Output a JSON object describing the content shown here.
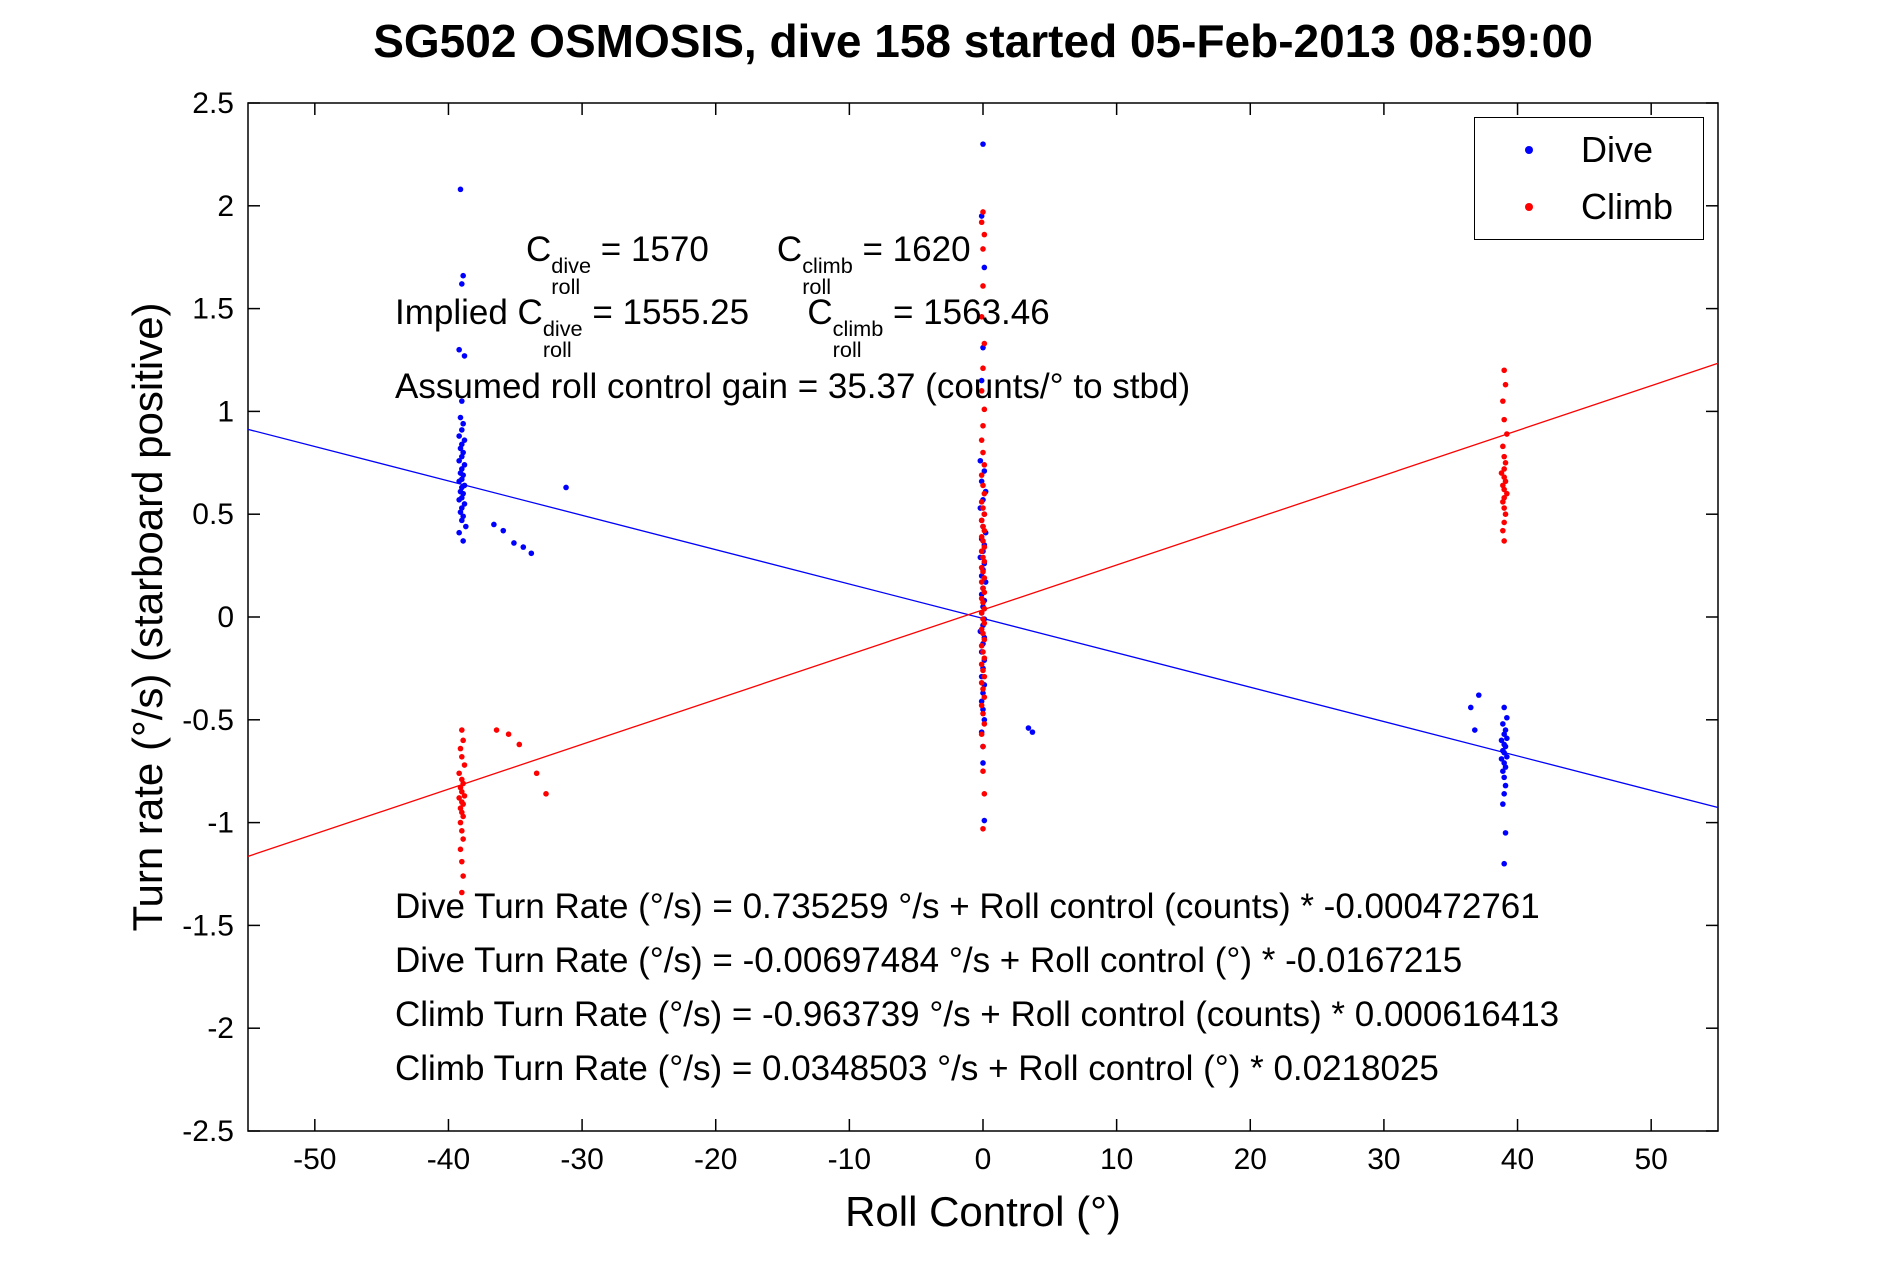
{
  "title": "SG502 OSMOSIS, dive 158 started 05-Feb-2013 08:59:00",
  "chart_data": {
    "type": "scatter",
    "title": "SG502 OSMOSIS, dive 158 started 05-Feb-2013 08:59:00",
    "xlabel": "Roll Control (°)",
    "ylabel": "Turn rate (°/s) (starboard positive)",
    "xlim": [
      -55,
      55
    ],
    "ylim": [
      -2.5,
      2.5
    ],
    "xticks": [
      -50,
      -40,
      -30,
      -20,
      -10,
      0,
      10,
      20,
      30,
      40,
      50
    ],
    "xtick_labels": [
      "-50",
      "-40",
      "-30",
      "-20",
      "-10",
      "0",
      "10",
      "20",
      "30",
      "40",
      "50"
    ],
    "yticks": [
      -2.5,
      -2,
      -1.5,
      -1,
      -0.5,
      0,
      0.5,
      1,
      1.5,
      2,
      2.5
    ],
    "ytick_labels": [
      "-2.5",
      "-2",
      "-1.5",
      "-1",
      "-0.5",
      "0",
      "0.5",
      "1",
      "1.5",
      "2",
      "2.5"
    ],
    "grid": false,
    "legend_position": "top-right",
    "series": [
      {
        "name": "Dive",
        "color": "#0000ff",
        "marker": "point",
        "fit": {
          "intercept": -0.00697484,
          "slope": -0.0167215
        },
        "points": [
          [
            -39.1,
            2.08
          ],
          [
            -38.9,
            1.66
          ],
          [
            -39.0,
            1.62
          ],
          [
            -39.2,
            1.3
          ],
          [
            -38.8,
            1.27
          ],
          [
            -39.0,
            1.05
          ],
          [
            -39.1,
            0.97
          ],
          [
            -38.9,
            0.94
          ],
          [
            -39.0,
            0.91
          ],
          [
            -39.2,
            0.88
          ],
          [
            -38.8,
            0.86
          ],
          [
            -39.0,
            0.84
          ],
          [
            -39.1,
            0.82
          ],
          [
            -38.9,
            0.8
          ],
          [
            -39.0,
            0.78
          ],
          [
            -39.2,
            0.76
          ],
          [
            -38.8,
            0.74
          ],
          [
            -39.0,
            0.72
          ],
          [
            -39.1,
            0.7
          ],
          [
            -38.9,
            0.69
          ],
          [
            -39.0,
            0.67
          ],
          [
            -39.2,
            0.66
          ],
          [
            -38.8,
            0.64
          ],
          [
            -39.0,
            0.63
          ],
          [
            -39.1,
            0.61
          ],
          [
            -38.9,
            0.6
          ],
          [
            -39.0,
            0.58
          ],
          [
            -39.2,
            0.57
          ],
          [
            -38.8,
            0.55
          ],
          [
            -39.0,
            0.53
          ],
          [
            -39.1,
            0.51
          ],
          [
            -38.9,
            0.49
          ],
          [
            -39.0,
            0.47
          ],
          [
            -38.7,
            0.44
          ],
          [
            -39.2,
            0.41
          ],
          [
            -38.9,
            0.37
          ],
          [
            -36.6,
            0.45
          ],
          [
            -35.9,
            0.42
          ],
          [
            -35.1,
            0.36
          ],
          [
            -34.4,
            0.34
          ],
          [
            -33.8,
            0.31
          ],
          [
            -31.2,
            0.63
          ],
          [
            0.0,
            2.3
          ],
          [
            -0.1,
            1.95
          ],
          [
            0.1,
            1.7
          ],
          [
            0.0,
            1.31
          ],
          [
            -0.1,
            1.15
          ],
          [
            -0.2,
            0.76
          ],
          [
            0.1,
            0.71
          ],
          [
            -0.1,
            0.66
          ],
          [
            0.2,
            0.61
          ],
          [
            0.0,
            0.57
          ],
          [
            -0.2,
            0.53
          ],
          [
            0.1,
            0.5
          ],
          [
            -0.1,
            0.47
          ],
          [
            0.0,
            0.44
          ],
          [
            0.2,
            0.41
          ],
          [
            -0.1,
            0.38
          ],
          [
            0.1,
            0.35
          ],
          [
            0.0,
            0.32
          ],
          [
            -0.2,
            0.29
          ],
          [
            0.1,
            0.26
          ],
          [
            0.0,
            0.23
          ],
          [
            -0.1,
            0.2
          ],
          [
            0.2,
            0.17
          ],
          [
            0.0,
            0.14
          ],
          [
            -0.1,
            0.11
          ],
          [
            0.1,
            0.08
          ],
          [
            0.0,
            0.05
          ],
          [
            -0.1,
            0.02
          ],
          [
            0.1,
            -0.01
          ],
          [
            0.0,
            -0.04
          ],
          [
            -0.2,
            -0.07
          ],
          [
            0.1,
            -0.1
          ],
          [
            0.0,
            -0.13
          ],
          [
            -0.1,
            -0.17
          ],
          [
            0.1,
            -0.21
          ],
          [
            0.0,
            -0.25
          ],
          [
            -0.1,
            -0.29
          ],
          [
            0.1,
            -0.33
          ],
          [
            0.0,
            -0.37
          ],
          [
            -0.1,
            -0.41
          ],
          [
            0.0,
            -0.45
          ],
          [
            0.1,
            -0.5
          ],
          [
            -0.1,
            -0.56
          ],
          [
            0.0,
            -0.63
          ],
          [
            0.0,
            -0.71
          ],
          [
            0.1,
            -0.99
          ],
          [
            3.4,
            -0.54
          ],
          [
            3.7,
            -0.56
          ],
          [
            39.0,
            -0.44
          ],
          [
            39.2,
            -0.49
          ],
          [
            38.9,
            -0.52
          ],
          [
            39.1,
            -0.55
          ],
          [
            39.0,
            -0.57
          ],
          [
            39.2,
            -0.59
          ],
          [
            38.8,
            -0.6
          ],
          [
            39.0,
            -0.62
          ],
          [
            39.1,
            -0.63
          ],
          [
            38.9,
            -0.65
          ],
          [
            39.0,
            -0.66
          ],
          [
            39.2,
            -0.68
          ],
          [
            38.8,
            -0.69
          ],
          [
            39.0,
            -0.71
          ],
          [
            39.1,
            -0.73
          ],
          [
            38.9,
            -0.75
          ],
          [
            39.0,
            -0.78
          ],
          [
            39.1,
            -0.82
          ],
          [
            39.0,
            -0.86
          ],
          [
            38.9,
            -0.91
          ],
          [
            39.1,
            -1.05
          ],
          [
            39.0,
            -1.2
          ],
          [
            36.5,
            -0.44
          ],
          [
            36.8,
            -0.55
          ],
          [
            37.1,
            -0.38
          ]
        ]
      },
      {
        "name": "Climb",
        "color": "#ff0000",
        "marker": "point",
        "fit": {
          "intercept": 0.0348503,
          "slope": 0.0218025
        },
        "points": [
          [
            -39.0,
            -0.55
          ],
          [
            -38.9,
            -0.6
          ],
          [
            -39.1,
            -0.64
          ],
          [
            -39.0,
            -0.68
          ],
          [
            -38.8,
            -0.72
          ],
          [
            -39.2,
            -0.76
          ],
          [
            -39.0,
            -0.79
          ],
          [
            -38.9,
            -0.81
          ],
          [
            -39.1,
            -0.83
          ],
          [
            -39.0,
            -0.85
          ],
          [
            -38.8,
            -0.87
          ],
          [
            -39.2,
            -0.88
          ],
          [
            -39.0,
            -0.9
          ],
          [
            -38.9,
            -0.91
          ],
          [
            -39.1,
            -0.93
          ],
          [
            -39.0,
            -0.95
          ],
          [
            -38.9,
            -0.97
          ],
          [
            -39.1,
            -1.0
          ],
          [
            -39.0,
            -1.04
          ],
          [
            -38.9,
            -1.08
          ],
          [
            -39.1,
            -1.13
          ],
          [
            -39.0,
            -1.19
          ],
          [
            -38.9,
            -1.26
          ],
          [
            -39.0,
            -1.34
          ],
          [
            -36.4,
            -0.55
          ],
          [
            -35.5,
            -0.57
          ],
          [
            -34.7,
            -0.62
          ],
          [
            -33.4,
            -0.76
          ],
          [
            -32.7,
            -0.86
          ],
          [
            0.0,
            1.97
          ],
          [
            -0.1,
            1.92
          ],
          [
            0.1,
            1.86
          ],
          [
            0.0,
            1.79
          ],
          [
            0.0,
            1.61
          ],
          [
            -0.1,
            1.46
          ],
          [
            0.1,
            1.33
          ],
          [
            0.0,
            1.21
          ],
          [
            -0.1,
            1.1
          ],
          [
            0.1,
            1.01
          ],
          [
            0.0,
            0.93
          ],
          [
            -0.1,
            0.86
          ],
          [
            0.0,
            0.8
          ],
          [
            0.1,
            0.74
          ],
          [
            -0.1,
            0.69
          ],
          [
            0.0,
            0.64
          ],
          [
            0.1,
            0.6
          ],
          [
            -0.1,
            0.56
          ],
          [
            0.0,
            0.53
          ],
          [
            0.1,
            0.5
          ],
          [
            -0.1,
            0.47
          ],
          [
            0.0,
            0.44
          ],
          [
            0.1,
            0.42
          ],
          [
            -0.1,
            0.39
          ],
          [
            0.0,
            0.37
          ],
          [
            0.1,
            0.34
          ],
          [
            -0.1,
            0.32
          ],
          [
            0.0,
            0.29
          ],
          [
            0.1,
            0.27
          ],
          [
            -0.1,
            0.24
          ],
          [
            0.0,
            0.22
          ],
          [
            0.1,
            0.19
          ],
          [
            -0.1,
            0.17
          ],
          [
            0.0,
            0.14
          ],
          [
            0.1,
            0.12
          ],
          [
            -0.1,
            0.09
          ],
          [
            0.0,
            0.07
          ],
          [
            0.1,
            0.04
          ],
          [
            -0.1,
            0.02
          ],
          [
            0.0,
            -0.01
          ],
          [
            0.1,
            -0.03
          ],
          [
            -0.1,
            -0.06
          ],
          [
            0.0,
            -0.08
          ],
          [
            0.1,
            -0.11
          ],
          [
            -0.1,
            -0.14
          ],
          [
            0.0,
            -0.17
          ],
          [
            0.1,
            -0.2
          ],
          [
            -0.1,
            -0.23
          ],
          [
            0.0,
            -0.26
          ],
          [
            0.1,
            -0.29
          ],
          [
            -0.1,
            -0.32
          ],
          [
            0.0,
            -0.35
          ],
          [
            0.1,
            -0.39
          ],
          [
            -0.1,
            -0.43
          ],
          [
            0.0,
            -0.47
          ],
          [
            0.1,
            -0.52
          ],
          [
            -0.1,
            -0.57
          ],
          [
            0.0,
            -0.63
          ],
          [
            0.0,
            -0.75
          ],
          [
            0.1,
            -0.86
          ],
          [
            0.0,
            -1.03
          ],
          [
            39.0,
            1.2
          ],
          [
            39.1,
            1.13
          ],
          [
            38.9,
            1.05
          ],
          [
            39.0,
            0.96
          ],
          [
            39.2,
            0.89
          ],
          [
            38.9,
            0.83
          ],
          [
            39.0,
            0.78
          ],
          [
            39.1,
            0.75
          ],
          [
            39.0,
            0.72
          ],
          [
            38.8,
            0.7
          ],
          [
            39.0,
            0.68
          ],
          [
            39.1,
            0.66
          ],
          [
            38.9,
            0.64
          ],
          [
            39.0,
            0.62
          ],
          [
            39.2,
            0.6
          ],
          [
            39.0,
            0.58
          ],
          [
            38.9,
            0.56
          ],
          [
            39.0,
            0.53
          ],
          [
            39.1,
            0.5
          ],
          [
            39.0,
            0.46
          ],
          [
            38.9,
            0.42
          ],
          [
            39.0,
            0.37
          ]
        ]
      }
    ]
  },
  "legend": {
    "dive_label": "Dive",
    "climb_label": "Climb",
    "dive_color": "#0000ff",
    "climb_color": "#ff0000"
  },
  "annotations": {
    "coeffs": {
      "segments": [
        {
          "text": "C"
        },
        {
          "sup": "dive",
          "sub": "roll"
        },
        {
          "text": " = 1570"
        },
        {
          "text": "       "
        },
        {
          "text": "C"
        },
        {
          "sup": "climb",
          "sub": "roll"
        },
        {
          "text": " = 1620"
        }
      ]
    },
    "implied": {
      "segments": [
        {
          "text": "Implied C"
        },
        {
          "sup": "dive",
          "sub": "roll"
        },
        {
          "text": " = 1555.25"
        },
        {
          "text": "      "
        },
        {
          "text": "C"
        },
        {
          "sup": "climb",
          "sub": "roll"
        },
        {
          "text": " = 1563.46"
        }
      ]
    },
    "gain": "Assumed roll control gain = 35.37 (counts/° to stbd)"
  },
  "equations": [
    "Dive Turn Rate (°/s) = 0.735259 °/s + Roll control (counts) * -0.000472761",
    "Dive Turn Rate (°/s) = -0.00697484 °/s + Roll control (°) * -0.0167215",
    "Climb Turn Rate (°/s) = -0.963739 °/s + Roll control (counts) * 0.000616413",
    "Climb Turn Rate (°/s) = 0.0348503 °/s + Roll control (°) * 0.0218025"
  ]
}
